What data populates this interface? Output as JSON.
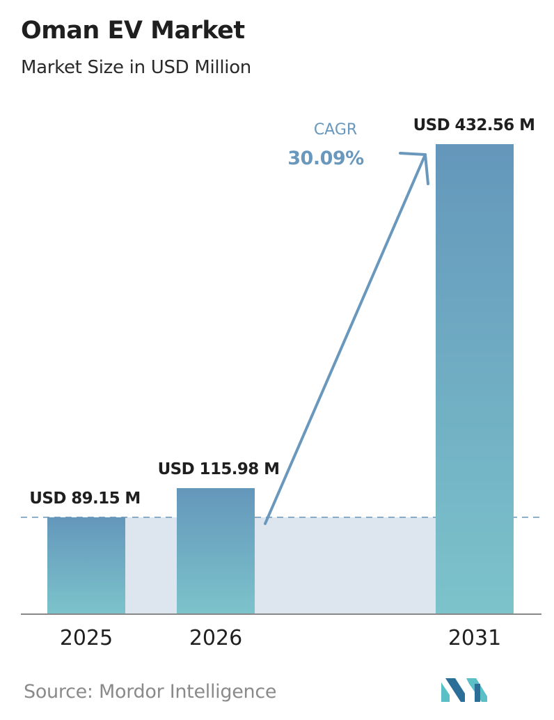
{
  "header": {
    "title": "Oman EV Market",
    "subtitle": "Market Size in USD Million"
  },
  "chart_data": {
    "type": "bar",
    "categories": [
      "2025",
      "2026",
      "2031"
    ],
    "values": [
      89.15,
      115.98,
      432.56
    ],
    "value_labels": [
      "USD 89.15 M",
      "USD 115.98 M",
      "USD 432.56 M"
    ],
    "title": "Oman EV Market",
    "subtitle": "Market Size in USD Million",
    "xlabel": "",
    "ylabel": "",
    "ylim": [
      0,
      432.56
    ],
    "grid": false,
    "annotations": {
      "cagr_label": "CAGR",
      "cagr_value": "30.09%"
    }
  },
  "footer": {
    "source": "Source:  Mordor Intelligence"
  },
  "colors": {
    "bar_top": "#6497bb",
    "bar_bottom": "#7cc3cb",
    "band": "#dde6ef",
    "arrow": "#6a98bd",
    "baseline": "#888888",
    "text": "#1f1f1f",
    "logo_dark": "#2b6e97",
    "logo_light": "#5bbfc6"
  }
}
